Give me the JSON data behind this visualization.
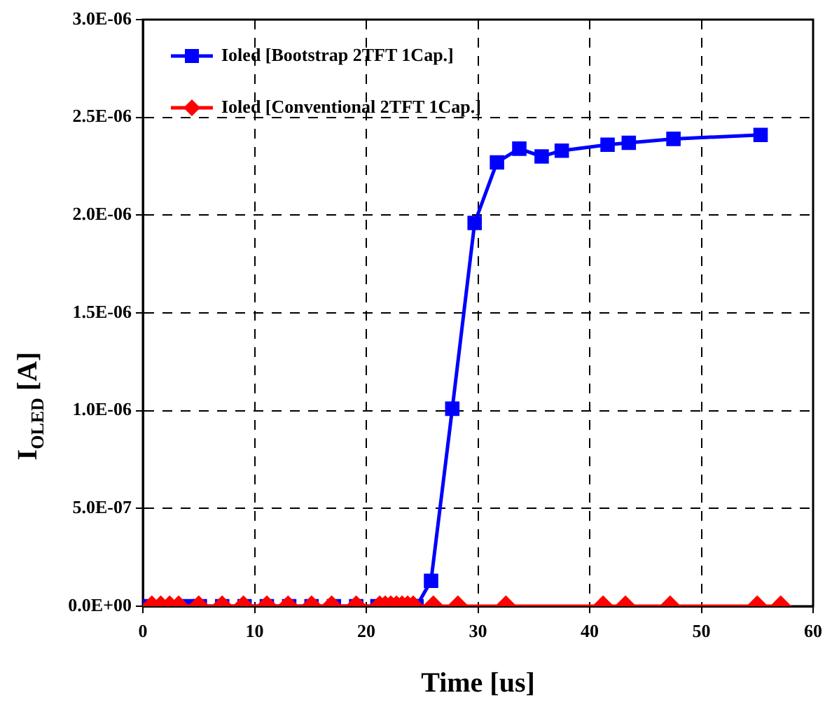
{
  "chart_data": {
    "type": "line",
    "xlabel": "Time [us]",
    "ylabel": "I$_{OLED}$ [A]",
    "xlim": [
      0,
      60
    ],
    "xticks": [
      0,
      10,
      20,
      30,
      40,
      50,
      60
    ],
    "ylim": [
      0,
      3e-06
    ],
    "yticks": [
      {
        "value": 0,
        "label": "0.0E+00"
      },
      {
        "value": 5e-07,
        "label": "5.0E-07"
      },
      {
        "value": 1e-06,
        "label": "1.0E-06"
      },
      {
        "value": 1.5e-06,
        "label": "1.5E-06"
      },
      {
        "value": 2e-06,
        "label": "2.0E-06"
      },
      {
        "value": 2.5e-06,
        "label": "2.5E-06"
      },
      {
        "value": 3e-06,
        "label": "3.0E-06"
      }
    ],
    "grid": true,
    "legend": "top left",
    "line_style": "solid",
    "series": [
      {
        "name": "Ioled [Bootstrap 2TFT 1Cap.]",
        "color": "#0000ff",
        "marker": "square",
        "x": [
          0,
          4,
          5.1,
          7.1,
          9.1,
          11.1,
          13.1,
          15.1,
          17.1,
          19.1,
          21,
          21.5,
          22,
          22.5,
          23,
          23.5,
          24,
          24.5,
          25.8,
          27.7,
          29.7,
          31.7,
          33.7,
          35.7,
          37.5,
          41.6,
          43.5,
          47.5,
          55.3
        ],
        "values": [
          0,
          0,
          0,
          0,
          0,
          0,
          0,
          0,
          0,
          0,
          0,
          0,
          0,
          0,
          0,
          0,
          0,
          0,
          1.3e-07,
          1.01e-06,
          1.96e-06,
          2.27e-06,
          2.34e-06,
          2.3e-06,
          2.33e-06,
          2.36e-06,
          2.37e-06,
          2.39e-06,
          2.41e-06
        ]
      },
      {
        "name": "Ioled [Conventional 2TFT 1Cap.]",
        "color": "#ff0000",
        "marker": "diamond",
        "x": [
          0.8,
          1.6,
          2.4,
          3.2,
          5,
          7.1,
          9,
          11.1,
          13,
          15.1,
          16.9,
          19.1,
          21.2,
          21.7,
          22.2,
          22.7,
          23.2,
          23.7,
          24.2,
          26,
          28.2,
          32.5,
          41.2,
          43.2,
          47.2,
          55,
          57.1
        ],
        "values": [
          0,
          0,
          0,
          0,
          0,
          0,
          0,
          0,
          0,
          0,
          0,
          0,
          0,
          0,
          0,
          0,
          0,
          0,
          0,
          0,
          0,
          0,
          0,
          0,
          0,
          0,
          0
        ]
      }
    ]
  }
}
